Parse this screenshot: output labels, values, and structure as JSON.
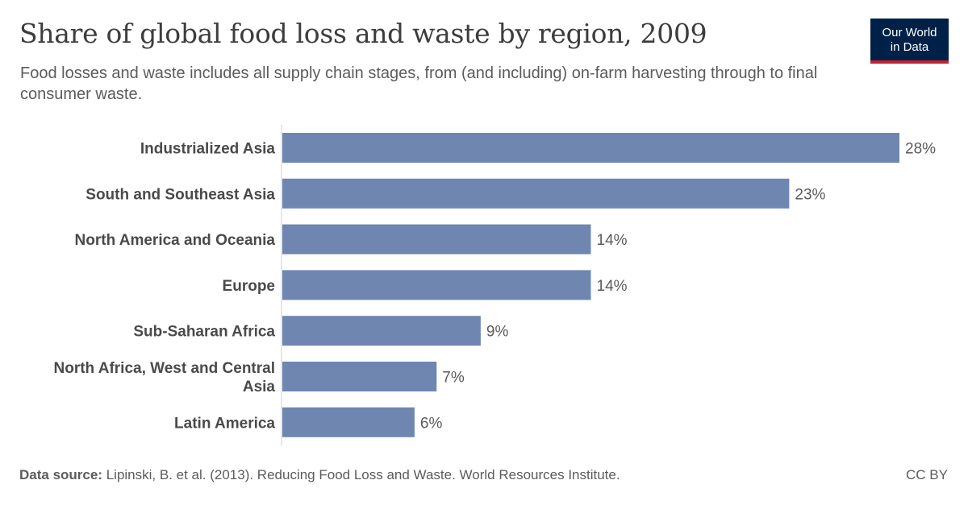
{
  "title": "Share of global food loss and waste by region, 2009",
  "subtitle": "Food losses and waste includes all supply chain stages, from (and including) on-farm harvesting through to final consumer waste.",
  "logo": {
    "line1": "Our World",
    "line2": "in Data"
  },
  "footer": {
    "source_label": "Data source:",
    "source_text": "Lipinski, B. et al. (2013). Reducing Food Loss and Waste. World Resources Institute.",
    "license": "CC BY"
  },
  "colors": {
    "bar": "#6f87b0",
    "axis": "#cccccc",
    "label": "#4a4a4a",
    "value": "#5b5b5b"
  },
  "chart_data": {
    "type": "bar",
    "orientation": "horizontal",
    "categories": [
      [
        "Industrialized Asia"
      ],
      [
        "South and Southeast Asia"
      ],
      [
        "North America and Oceania"
      ],
      [
        "Europe"
      ],
      [
        "Sub-Saharan Africa"
      ],
      [
        "North Africa, West and Central",
        "Asia"
      ],
      [
        "Latin America"
      ]
    ],
    "values": [
      28,
      23,
      14,
      14,
      9,
      7,
      6
    ],
    "value_labels": [
      "28%",
      "23%",
      "14%",
      "14%",
      "9%",
      "7%",
      "6%"
    ],
    "xlim": [
      0,
      28
    ],
    "grid": false
  }
}
